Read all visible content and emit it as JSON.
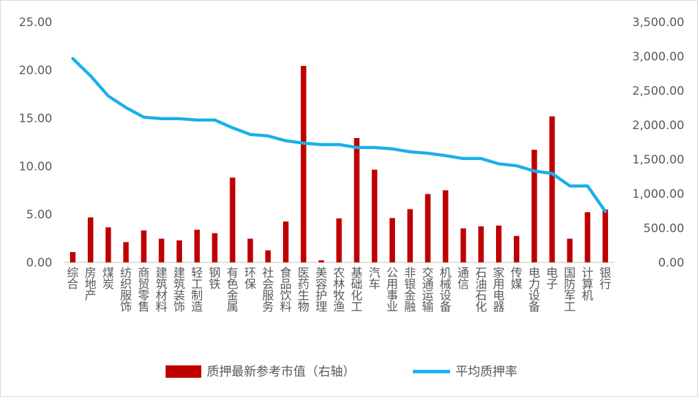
{
  "chart_data": {
    "type": "bar",
    "categories": [
      "综合",
      "房地产",
      "煤炭",
      "纺织服饰",
      "商贸零售",
      "建筑材料",
      "建筑装饰",
      "轻工制造",
      "钢铁",
      "有色金属",
      "环保",
      "社会服务",
      "食品饮料",
      "医药生物",
      "美容护理",
      "农林牧渔",
      "基础化工",
      "汽车",
      "公用事业",
      "非银金融",
      "交通运输",
      "机械设备",
      "通信",
      "石油石化",
      "家用电器",
      "传媒",
      "电力设备",
      "电子",
      "国防军工",
      "计算机",
      "银行"
    ],
    "series": [
      {
        "name": "质押最新参考市值（右轴）",
        "type": "bar",
        "axis": "right",
        "color": "#c00000",
        "values": [
          150,
          655,
          510,
          295,
          465,
          345,
          320,
          475,
          425,
          1235,
          345,
          175,
          595,
          2860,
          30,
          640,
          1810,
          1350,
          645,
          775,
          995,
          1050,
          495,
          525,
          535,
          385,
          1640,
          2125,
          345,
          730,
          770
        ]
      },
      {
        "name": "平均质押率",
        "type": "line",
        "axis": "left",
        "color": "#1ab0e8",
        "values": [
          21.2,
          19.4,
          17.3,
          16.1,
          15.1,
          14.95,
          14.95,
          14.8,
          14.8,
          14.0,
          13.3,
          13.15,
          12.65,
          12.4,
          12.25,
          12.25,
          11.95,
          11.95,
          11.8,
          11.5,
          11.35,
          11.1,
          10.8,
          10.8,
          10.25,
          10.05,
          9.5,
          9.25,
          7.95,
          7.95,
          5.3
        ]
      }
    ],
    "y_left": {
      "ylim": [
        0,
        25
      ],
      "ticks": [
        "0.00",
        "5.00",
        "10.00",
        "15.00",
        "20.00",
        "25.00"
      ]
    },
    "y_right": {
      "ylim": [
        0,
        3500
      ],
      "ticks": [
        "0.00",
        "500.00",
        "1,000.00",
        "1,500.00",
        "2,000.00",
        "2,500.00",
        "3,000.00",
        "3,500.00"
      ]
    },
    "grid": false,
    "legend_position": "bottom"
  }
}
